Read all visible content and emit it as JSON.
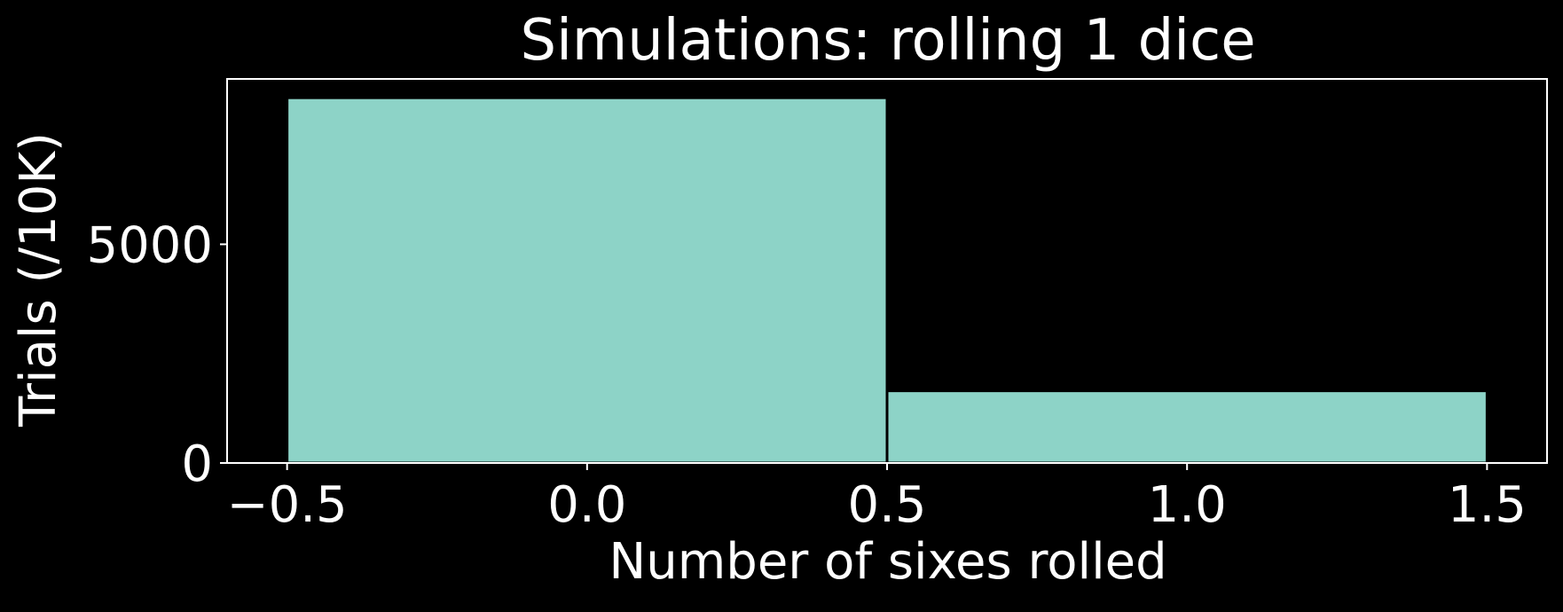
{
  "chart_data": {
    "type": "bar",
    "title": "Simulations: rolling 1 dice",
    "xlabel": "Number of sixes rolled",
    "ylabel": "Trials (/10K)",
    "bins": [
      {
        "x_start": -0.5,
        "x_end": 0.5,
        "value": 8350
      },
      {
        "x_start": 0.5,
        "x_end": 1.5,
        "value": 1650
      }
    ],
    "xlim": [
      -0.6,
      1.6
    ],
    "ylim": [
      0,
      8780
    ],
    "xticks": [
      {
        "value": -0.5,
        "label": "−0.5"
      },
      {
        "value": 0.0,
        "label": "0.0"
      },
      {
        "value": 0.5,
        "label": "0.5"
      },
      {
        "value": 1.0,
        "label": "1.0"
      },
      {
        "value": 1.5,
        "label": "1.5"
      }
    ],
    "yticks": [
      {
        "value": 0,
        "label": "0"
      },
      {
        "value": 5000,
        "label": "5000"
      }
    ],
    "grid": false,
    "legend": "none",
    "colors": {
      "background": "#000000",
      "bar_fill": "#8dd3c7",
      "bar_edge": "#000000",
      "axes": "#ffffff",
      "text": "#ffffff"
    }
  }
}
